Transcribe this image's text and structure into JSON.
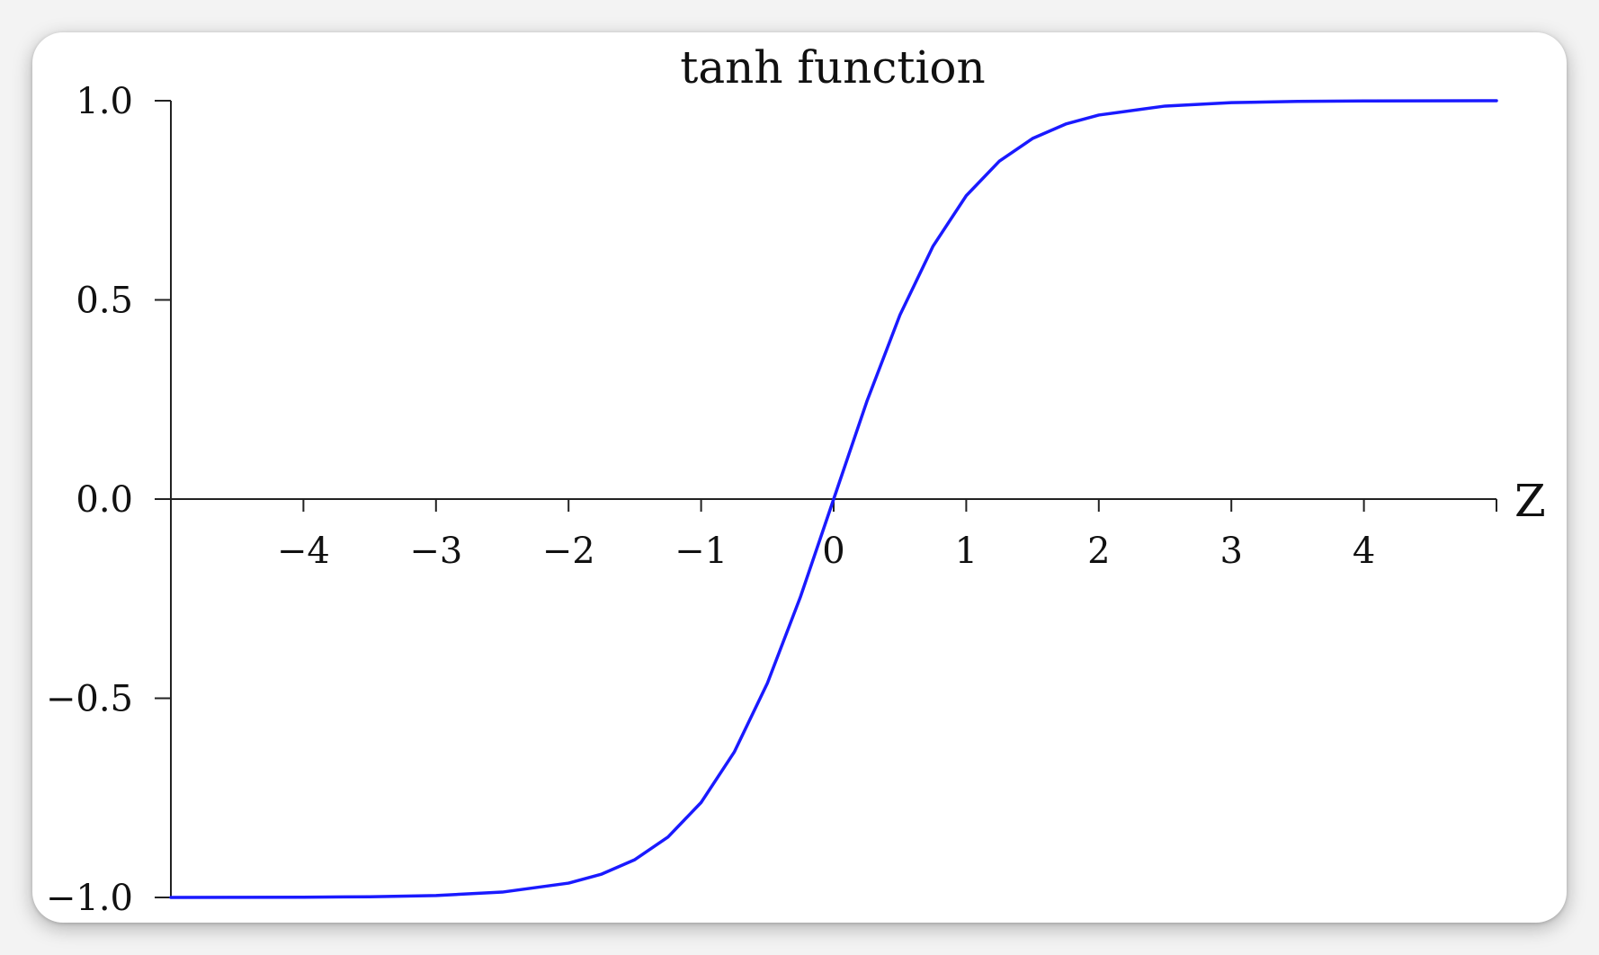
{
  "chart_data": {
    "type": "line",
    "title": "tanh function",
    "xlabel": "Z",
    "ylabel": "",
    "xlim": [
      -5,
      5
    ],
    "ylim": [
      -1.0,
      1.0
    ],
    "x_ticks": [
      -4,
      -3,
      -2,
      -1,
      0,
      1,
      2,
      3,
      4
    ],
    "x_tick_labels": [
      "−4",
      "−3",
      "−2",
      "−1",
      "0",
      "1",
      "2",
      "3",
      "4"
    ],
    "y_ticks": [
      1.0,
      0.5,
      0.0,
      -0.5,
      -1.0
    ],
    "y_tick_labels": [
      "1.0",
      "0.5",
      "0.0",
      "−0.5",
      "−1.0"
    ],
    "grid": false,
    "legend": "none",
    "line_color": "#1a1aff",
    "series": [
      {
        "x": [
          -5,
          -4.5,
          -4,
          -3.5,
          -3,
          -2.5,
          -2,
          -1.75,
          -1.5,
          -1.25,
          -1,
          -0.75,
          -0.5,
          -0.25,
          0,
          0.25,
          0.5,
          0.75,
          1,
          1.25,
          1.5,
          1.75,
          2,
          2.5,
          3,
          3.5,
          4,
          4.5,
          5
        ],
        "values": [
          -0.9999,
          -0.9998,
          -0.9993,
          -0.9982,
          -0.9951,
          -0.9866,
          -0.964,
          -0.9414,
          -0.9051,
          -0.8483,
          -0.7616,
          -0.6351,
          -0.4621,
          -0.2449,
          0,
          0.2449,
          0.4621,
          0.6351,
          0.7616,
          0.8483,
          0.9051,
          0.9414,
          0.964,
          0.9866,
          0.9951,
          0.9982,
          0.9993,
          0.9998,
          0.9999
        ]
      }
    ]
  }
}
